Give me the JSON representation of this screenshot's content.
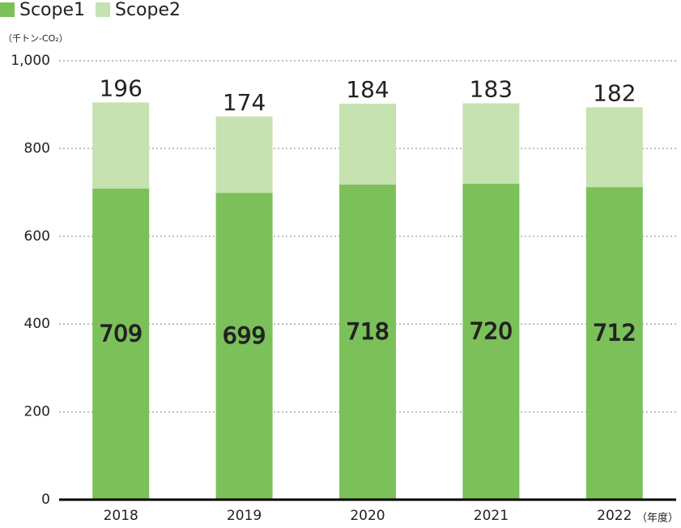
{
  "chart_data": {
    "type": "bar",
    "stacked": true,
    "y_label": "（千トン-CO₂）",
    "x_label": "（年度）",
    "categories": [
      "2018",
      "2019",
      "2020",
      "2021",
      "2022"
    ],
    "series": [
      {
        "name": "Scope1",
        "color": "#7cc05a",
        "values": [
          709,
          699,
          718,
          720,
          712
        ]
      },
      {
        "name": "Scope2",
        "color": "#c5e2b0",
        "values": [
          196,
          174,
          184,
          183,
          182
        ]
      }
    ],
    "ylim": [
      0,
      1000
    ],
    "yticks": [
      0,
      200,
      400,
      600,
      800,
      {
        "value": 1000,
        "label": "1,000"
      }
    ],
    "grid": true,
    "legend": "top-left"
  }
}
